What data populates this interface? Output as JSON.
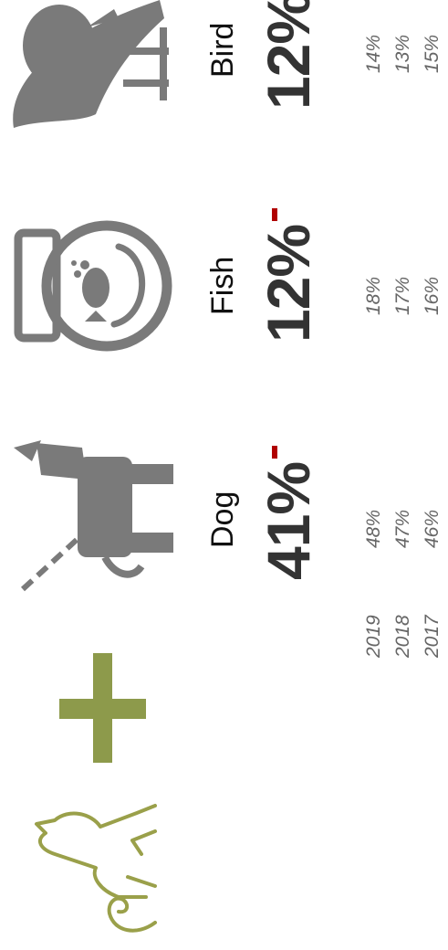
{
  "years": [
    "2019",
    "2018",
    "2017"
  ],
  "pets": [
    {
      "name": "Dog",
      "share": "41%",
      "history": [
        "48%",
        "47%",
        "46%"
      ]
    },
    {
      "name": "Fish",
      "share": "12%",
      "history": [
        "18%",
        "17%",
        "16%"
      ]
    },
    {
      "name": "Bird",
      "share": "12%",
      "history": [
        "14%",
        "13%",
        "15%"
      ]
    }
  ]
}
